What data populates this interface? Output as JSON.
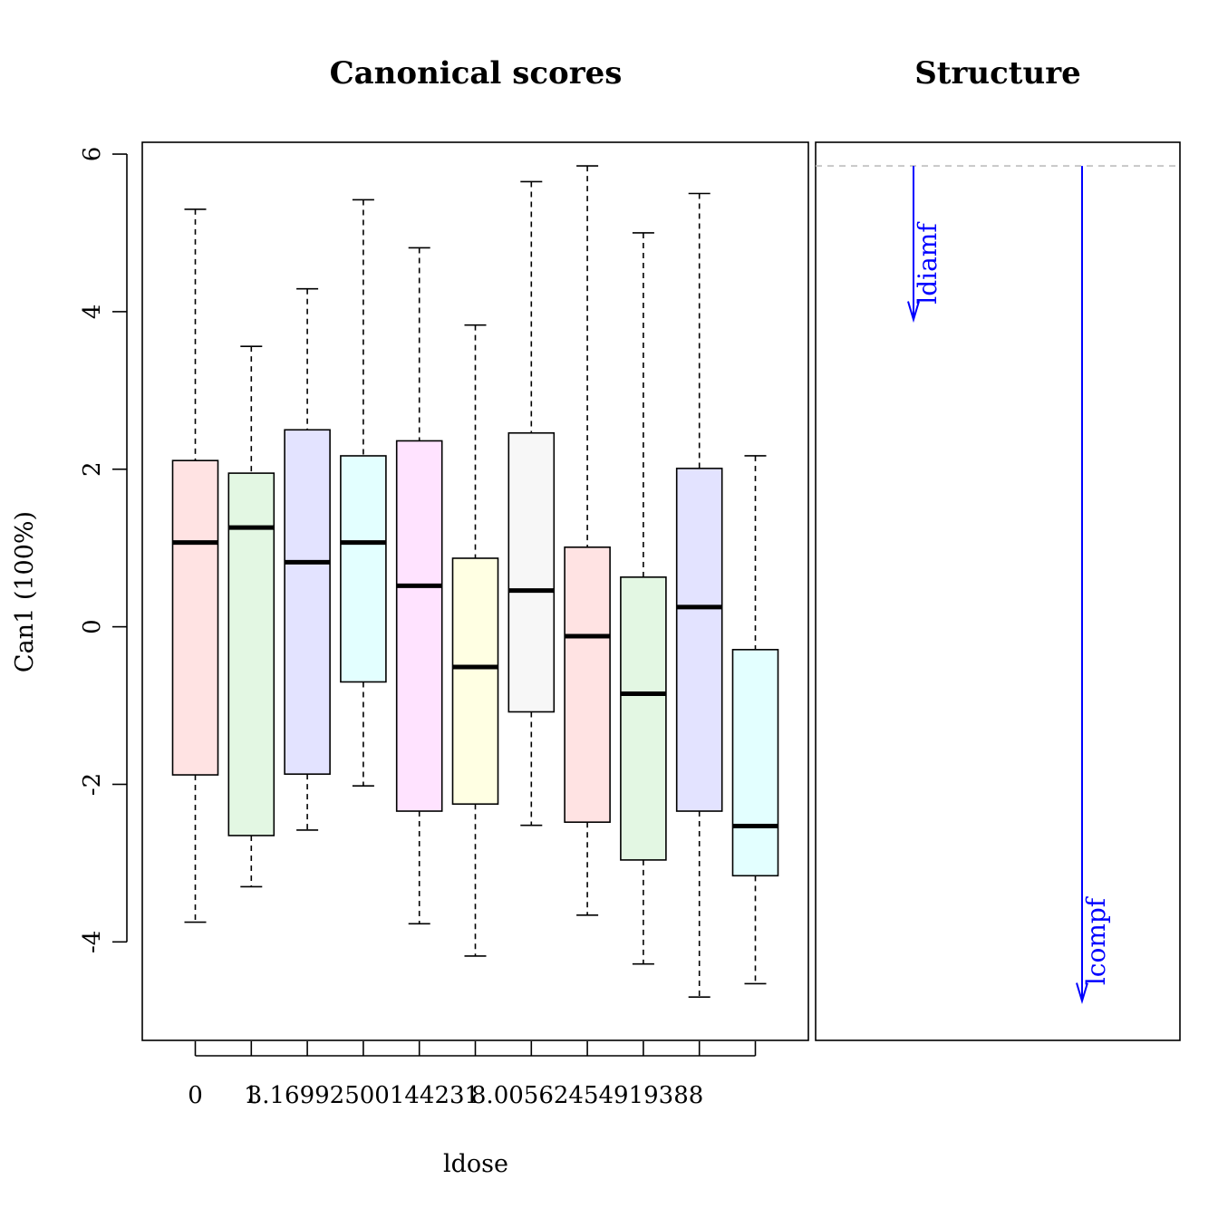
{
  "chart_data": {
    "type": "box",
    "canonical_scores": {
      "title": "Canonical scores",
      "xlabel": "ldose",
      "ylabel": "Can1 (100%)",
      "ylim": [
        -5.25,
        6.15
      ],
      "yticks": [
        -4,
        -2,
        0,
        2,
        4,
        6
      ],
      "ytick_labels": [
        "-4",
        "-2",
        "0",
        "2",
        "4",
        "6"
      ],
      "xtick_labels": [
        "0",
        "1",
        "",
        "3.16992500144231",
        "",
        "",
        "",
        "8.00562454919388",
        "",
        "",
        ""
      ],
      "boxes": [
        {
          "lower_whisker": -3.75,
          "q1": -1.88,
          "median": 1.07,
          "q3": 2.11,
          "upper_whisker": 5.3,
          "fill": "#ffe3e3"
        },
        {
          "lower_whisker": -3.3,
          "q1": -2.65,
          "median": 1.26,
          "q3": 1.95,
          "upper_whisker": 3.56,
          "fill": "#e3f7e3"
        },
        {
          "lower_whisker": -2.58,
          "q1": -1.87,
          "median": 0.82,
          "q3": 2.5,
          "upper_whisker": 4.29,
          "fill": "#e3e3ff"
        },
        {
          "lower_whisker": -2.02,
          "q1": -0.7,
          "median": 1.07,
          "q3": 2.17,
          "upper_whisker": 5.42,
          "fill": "#e3ffff"
        },
        {
          "lower_whisker": -3.77,
          "q1": -2.34,
          "median": 0.52,
          "q3": 2.36,
          "upper_whisker": 4.81,
          "fill": "#ffe3ff"
        },
        {
          "lower_whisker": -4.18,
          "q1": -2.25,
          "median": -0.51,
          "q3": 0.87,
          "upper_whisker": 3.83,
          "fill": "#ffffe3"
        },
        {
          "lower_whisker": -2.52,
          "q1": -1.08,
          "median": 0.46,
          "q3": 2.46,
          "upper_whisker": 5.65,
          "fill": "#f7f7f7"
        },
        {
          "lower_whisker": -3.66,
          "q1": -2.48,
          "median": -0.12,
          "q3": 1.01,
          "upper_whisker": 5.85,
          "fill": "#ffe3e3"
        },
        {
          "lower_whisker": -4.28,
          "q1": -2.96,
          "median": -0.85,
          "q3": 0.63,
          "upper_whisker": 5.0,
          "fill": "#e3f7e3"
        },
        {
          "lower_whisker": -4.7,
          "q1": -2.34,
          "median": 0.25,
          "q3": 2.01,
          "upper_whisker": 5.5,
          "fill": "#e3e3ff"
        },
        {
          "lower_whisker": -4.53,
          "q1": -3.16,
          "median": -2.53,
          "q3": -0.29,
          "upper_whisker": 2.17,
          "fill": "#e3ffff"
        }
      ]
    },
    "structure": {
      "title": "Structure",
      "reference_line": 5.85,
      "vectors": [
        {
          "name": "ldiamf",
          "start": 5.85,
          "end": 3.9,
          "color": "#0000ff"
        },
        {
          "name": "lcompf",
          "start": 5.85,
          "end": -4.75,
          "color": "#0000ff"
        }
      ]
    }
  }
}
